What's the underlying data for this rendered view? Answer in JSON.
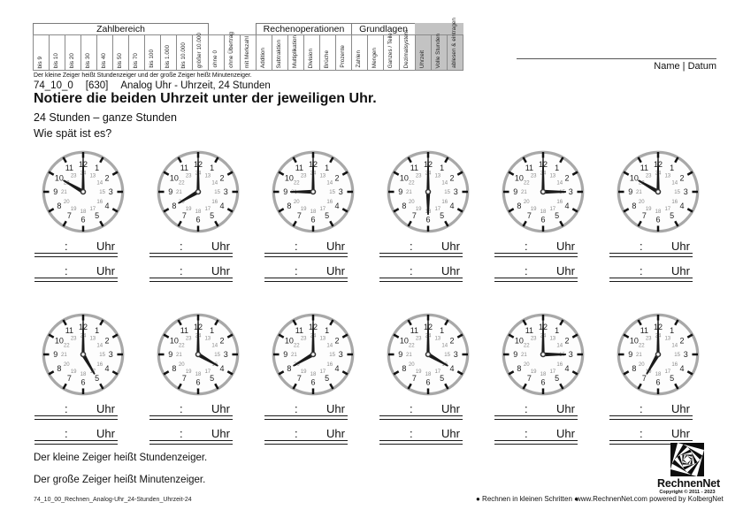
{
  "header": {
    "criteria_table": {
      "highlight_color": "#c3c3c3",
      "groups": [
        {
          "label": "Zahlbereich",
          "highlighted": false,
          "columns": [
            "bis 9",
            "bis 10",
            "bis 20",
            "bis 30",
            "bis 40",
            "bis 50",
            "bis 70",
            "bis 100",
            "bis 1.000",
            "bis 10.000",
            "größer 10.000"
          ]
        },
        {
          "label": "",
          "highlighted": false,
          "columns": [
            "ohne 0",
            "ohne Übertrag",
            "mit Merkzahl"
          ]
        },
        {
          "label": "Rechenoperationen",
          "highlighted": false,
          "columns": [
            "Addition",
            "Subtraktion",
            "Multiplikation",
            "Division",
            "Brüche",
            "Prozente"
          ]
        },
        {
          "label": "Grundlagen",
          "highlighted": false,
          "columns": [
            "Zahlen",
            "Mengen",
            "Ganzes / Teile",
            "Dezimalsystem"
          ]
        },
        {
          "label": "",
          "highlighted": true,
          "columns": [
            "Uhrzeit",
            "Volle Stunden",
            "ablesen & eintragen"
          ]
        }
      ]
    },
    "hint_line": "Der kleine Zeiger heißt Stundenzeiger und der große Zeiger heißt Minutenzeiger.",
    "name_date_label": "Name | Datum"
  },
  "title_block": {
    "worksheet_code": "74_10_0",
    "worksheet_number": "[630]",
    "worksheet_topic": "Analog Uhr - Uhrzeit, 24 Stunden",
    "title": "Notiere die beiden Uhrzeit unter der jeweiligen Uhr.",
    "subtitle": "24 Stunden – ganze Stunden",
    "question": "Wie spät ist es?"
  },
  "clocks": {
    "dial_outer_numbers": [
      1,
      2,
      3,
      4,
      5,
      6,
      7,
      8,
      9,
      10,
      11,
      12
    ],
    "dial_inner_numbers": [
      13,
      14,
      15,
      16,
      17,
      18,
      19,
      20,
      21,
      22,
      23,
      24
    ],
    "rows": [
      {
        "hours": [
          10,
          8,
          9,
          6,
          3,
          10
        ]
      },
      {
        "hours": [
          5,
          4,
          8,
          4,
          3,
          7
        ]
      }
    ],
    "minutes": 0,
    "answer_colon": ":",
    "answer_unit": "Uhr",
    "rim_color": "#a8a8a8",
    "hand_color": "#1a1a1a",
    "inner_number_color": "#8a8a8a",
    "outer_number_color": "#1f1f1f"
  },
  "footer": {
    "hint1": "Der kleine Zeiger heißt Stundenzeiger.",
    "hint2": "Der große Zeiger heißt Minutenzeiger.",
    "file_code": "74_10_00_Rechnen_Analog-Uhr_24-Stunden_Uhrzeit-24",
    "series_text": "● Rechnen in kleinen Schritten ●",
    "site_text": "www.RechnenNet.com powered by KolbergNet",
    "logo_text": "RechnenNet",
    "logo_copyright": "Copyright © 2011 - 2023"
  }
}
